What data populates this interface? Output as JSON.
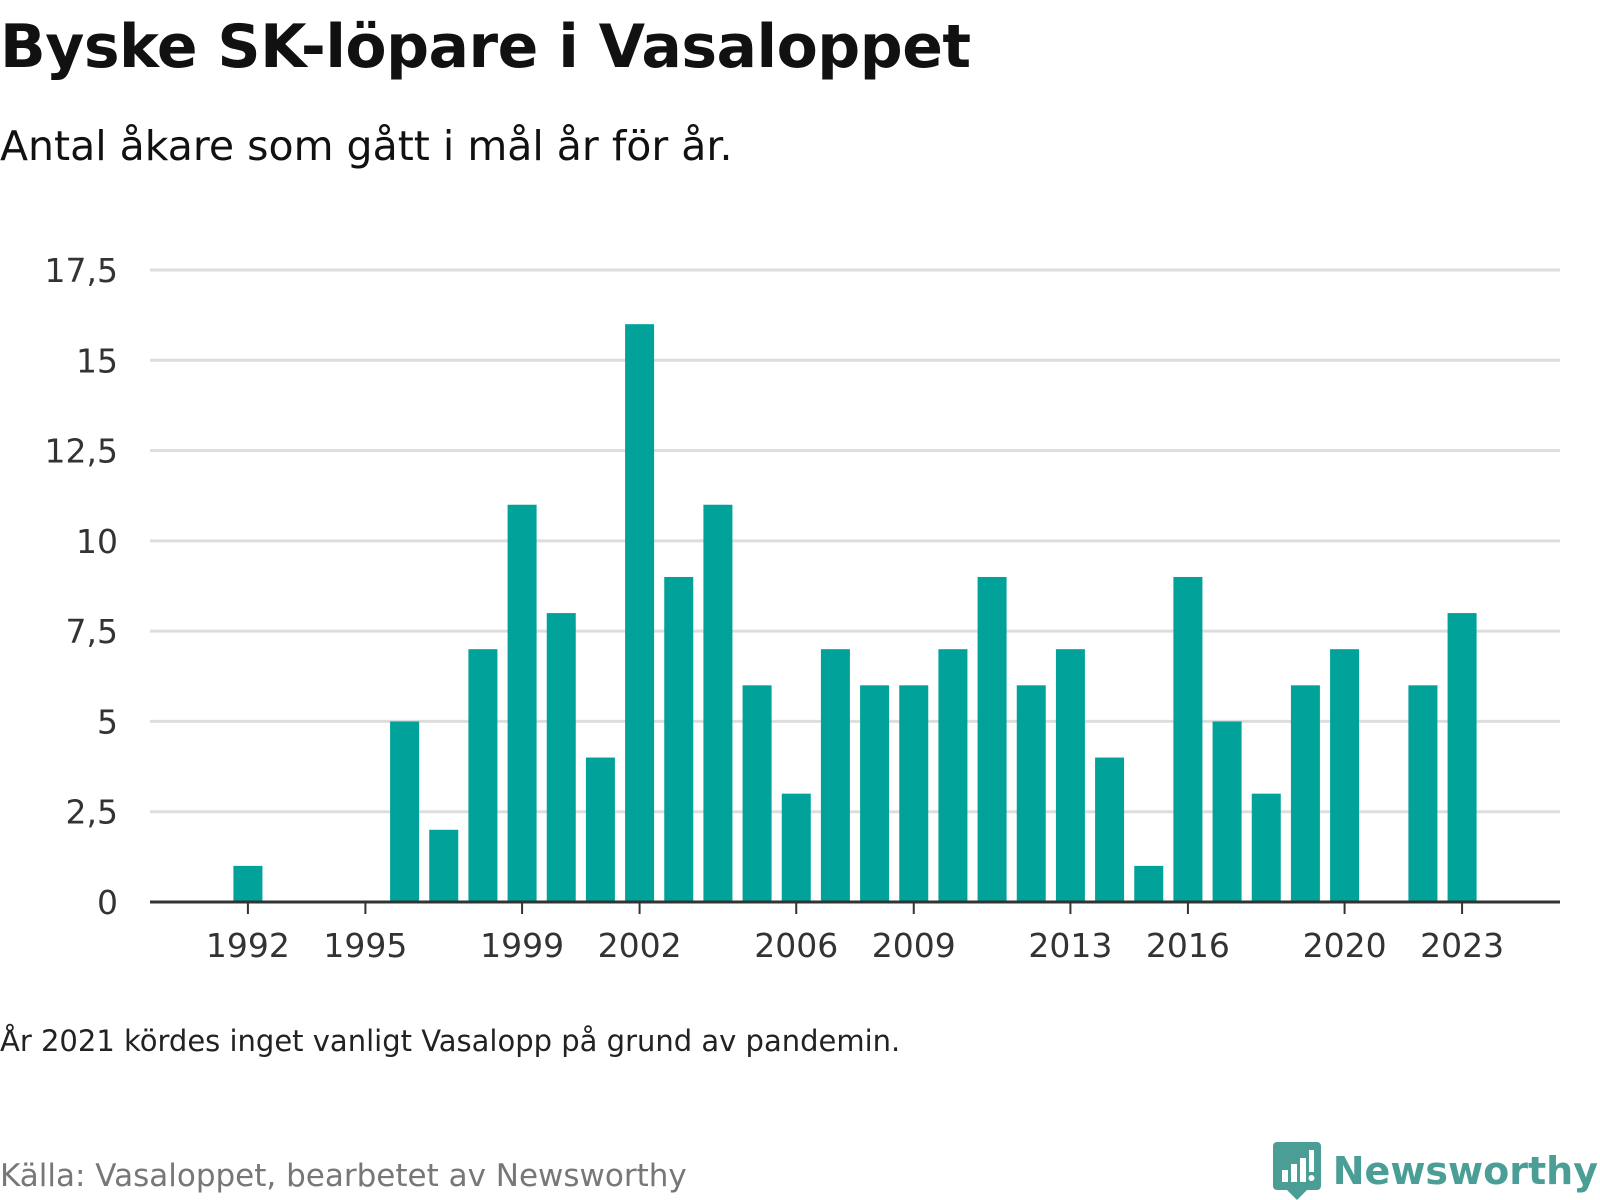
{
  "title": "Byske SK-löpare i Vasaloppet",
  "subtitle": "Antal åkare som gått i mål år för år.",
  "note": "År 2021 kördes inget vanligt Vasalopp på grund av pandemin.",
  "source": "Källa: Vasaloppet, bearbetet av Newsworthy",
  "logo": {
    "text": "Newsworthy",
    "icon": "bar-chart-speech-bubble-icon",
    "color": "#4a9e96"
  },
  "colors": {
    "bar": "#00a29a",
    "grid": "#dddddd",
    "axis": "#333333"
  },
  "chart_data": {
    "type": "bar",
    "title": "Byske SK-löpare i Vasaloppet",
    "subtitle": "Antal åkare som gått i mål år för år.",
    "xlabel": "",
    "ylabel": "",
    "ylim": [
      0,
      17.5
    ],
    "xlim": [
      1989.5,
      2025.5
    ],
    "grid": true,
    "yticks": [
      {
        "value": 0,
        "label": "0"
      },
      {
        "value": 2.5,
        "label": "2,5"
      },
      {
        "value": 5,
        "label": "5"
      },
      {
        "value": 7.5,
        "label": "7,5"
      },
      {
        "value": 10,
        "label": "10"
      },
      {
        "value": 12.5,
        "label": "12,5"
      },
      {
        "value": 15,
        "label": "15"
      },
      {
        "value": 17.5,
        "label": "17,5"
      }
    ],
    "xticks": [
      1992,
      1995,
      1999,
      2002,
      2006,
      2009,
      2013,
      2016,
      2020,
      2023
    ],
    "x": [
      1992,
      1996,
      1997,
      1998,
      1999,
      2000,
      2001,
      2002,
      2003,
      2004,
      2005,
      2006,
      2007,
      2008,
      2009,
      2010,
      2011,
      2012,
      2013,
      2014,
      2015,
      2016,
      2017,
      2018,
      2019,
      2020,
      2022,
      2023
    ],
    "values": [
      1,
      5,
      2,
      7,
      11,
      8,
      4,
      16,
      9,
      11,
      6,
      3,
      7,
      6,
      6,
      7,
      9,
      6,
      7,
      4,
      1,
      9,
      5,
      3,
      6,
      7,
      6,
      8
    ]
  }
}
